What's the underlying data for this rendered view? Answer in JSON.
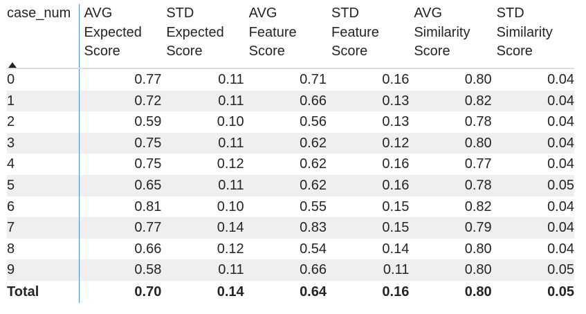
{
  "table": {
    "columns": [
      {
        "label": "case_num"
      },
      {
        "label": "AVG Expected Score"
      },
      {
        "label": "STD Expected Score"
      },
      {
        "label": "AVG Feature Score"
      },
      {
        "label": "STD Feature Score"
      },
      {
        "label": "AVG Similarity Score"
      },
      {
        "label": "STD Similarity Score"
      }
    ],
    "sort": {
      "column": "case_num",
      "direction": "ascending",
      "icon": "sort-ascending-icon"
    },
    "rows": [
      [
        "0",
        "0.77",
        "0.11",
        "0.71",
        "0.16",
        "0.80",
        "0.04"
      ],
      [
        "1",
        "0.72",
        "0.11",
        "0.66",
        "0.13",
        "0.82",
        "0.04"
      ],
      [
        "2",
        "0.59",
        "0.10",
        "0.56",
        "0.13",
        "0.78",
        "0.04"
      ],
      [
        "3",
        "0.75",
        "0.11",
        "0.62",
        "0.12",
        "0.80",
        "0.04"
      ],
      [
        "4",
        "0.75",
        "0.12",
        "0.62",
        "0.16",
        "0.77",
        "0.04"
      ],
      [
        "5",
        "0.65",
        "0.11",
        "0.62",
        "0.16",
        "0.78",
        "0.05"
      ],
      [
        "6",
        "0.81",
        "0.10",
        "0.55",
        "0.15",
        "0.82",
        "0.04"
      ],
      [
        "7",
        "0.77",
        "0.14",
        "0.83",
        "0.15",
        "0.79",
        "0.04"
      ],
      [
        "8",
        "0.66",
        "0.12",
        "0.54",
        "0.14",
        "0.80",
        "0.04"
      ],
      [
        "9",
        "0.58",
        "0.11",
        "0.66",
        "0.11",
        "0.80",
        "0.05"
      ]
    ],
    "total": [
      "Total",
      "0.70",
      "0.14",
      "0.64",
      "0.16",
      "0.80",
      "0.05"
    ],
    "colors": {
      "stripe": "#efefef",
      "divider": "#4a90e2",
      "text": "#252423"
    }
  }
}
